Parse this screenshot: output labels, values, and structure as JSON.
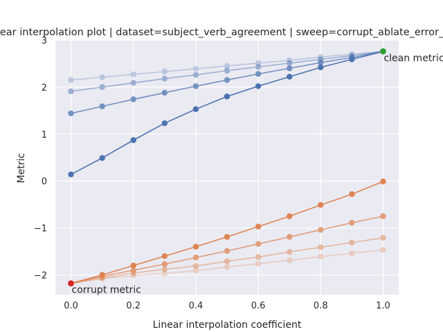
{
  "chart_data": {
    "type": "line",
    "title": "Linear interpolation plot | dataset=subject_verb_agreement | sweep=corrupt_ablate_error_node",
    "xlabel": "Linear interpolation coefficient",
    "ylabel": "Metric",
    "xlim": [
      -0.05,
      1.05
    ],
    "ylim": [
      -2.42,
      3.0
    ],
    "xticks": [
      "0.0",
      "0.2",
      "0.4",
      "0.6",
      "0.8",
      "1.0"
    ],
    "yticks": [
      "−2",
      "−1",
      "0",
      "1",
      "2",
      "3"
    ],
    "grid": true,
    "background": "#eaeaf2",
    "x": [
      0.0,
      0.1,
      0.2,
      0.3,
      0.4,
      0.5,
      0.6,
      0.7,
      0.8,
      0.9,
      1.0
    ],
    "series": [
      {
        "color": "#4c72b0",
        "opacity": 1.0,
        "values": [
          0.14,
          0.49,
          0.87,
          1.23,
          1.53,
          1.8,
          2.02,
          2.22,
          2.42,
          2.59,
          2.76
        ]
      },
      {
        "color": "#4c72b0",
        "opacity": 0.75,
        "values": [
          1.44,
          1.59,
          1.74,
          1.88,
          2.02,
          2.15,
          2.28,
          2.4,
          2.52,
          2.63,
          2.76
        ]
      },
      {
        "color": "#4c72b0",
        "opacity": 0.5,
        "values": [
          1.91,
          2.0,
          2.09,
          2.18,
          2.26,
          2.35,
          2.43,
          2.51,
          2.59,
          2.67,
          2.76
        ]
      },
      {
        "color": "#4c72b0",
        "opacity": 0.3,
        "values": [
          2.15,
          2.21,
          2.27,
          2.33,
          2.39,
          2.45,
          2.51,
          2.57,
          2.64,
          2.7,
          2.76
        ]
      },
      {
        "color": "#dd8452",
        "opacity": 1.0,
        "values": [
          -2.18,
          -2.0,
          -1.8,
          -1.6,
          -1.4,
          -1.19,
          -0.97,
          -0.75,
          -0.51,
          -0.28,
          -0.01
        ]
      },
      {
        "color": "#dd8452",
        "opacity": 0.75,
        "values": [
          -2.18,
          -2.03,
          -1.9,
          -1.77,
          -1.63,
          -1.49,
          -1.34,
          -1.19,
          -1.04,
          -0.89,
          -0.75
        ]
      },
      {
        "color": "#dd8452",
        "opacity": 0.5,
        "values": [
          -2.18,
          -2.06,
          -1.96,
          -1.88,
          -1.81,
          -1.71,
          -1.62,
          -1.51,
          -1.41,
          -1.31,
          -1.21
        ]
      },
      {
        "color": "#dd8452",
        "opacity": 0.3,
        "values": [
          -2.18,
          -2.08,
          -2.01,
          -1.97,
          -1.91,
          -1.83,
          -1.76,
          -1.69,
          -1.61,
          -1.54,
          -1.47
        ]
      }
    ],
    "annotations": [
      {
        "text": "clean metric",
        "x": 1.0,
        "y": 2.76,
        "marker_color": "#2ca02c"
      },
      {
        "text": "corrupt metric",
        "x": 0.0,
        "y": -2.18,
        "marker_color": "#d62728"
      }
    ]
  }
}
